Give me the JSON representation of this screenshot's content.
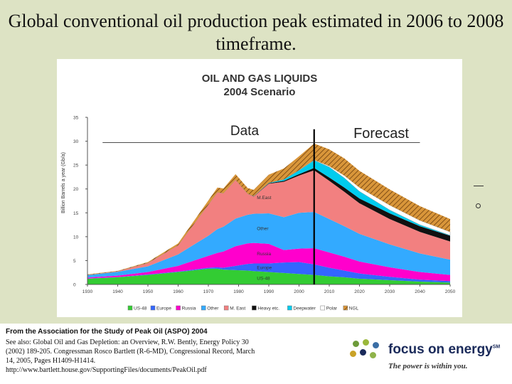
{
  "slide": {
    "title": "Global conventional oil production peak estimated in 2006 to 2008 timeframe."
  },
  "chart_data": {
    "type": "area",
    "title": "OIL AND GAS LIQUIDS",
    "subtitle": "2004 Scenario",
    "xlabel": "",
    "ylabel": "Billion Barrels a year (Gb/a)",
    "xlim": [
      1930,
      2050
    ],
    "ylim": [
      0,
      35
    ],
    "x_ticks": [
      "1930",
      "1940",
      "1950",
      "1960",
      "1970",
      "1980",
      "1990",
      "2000",
      "2010",
      "2020",
      "2030",
      "2040",
      "2050"
    ],
    "y_ticks": [
      "0",
      "5",
      "10",
      "15",
      "20",
      "25",
      "30",
      "35"
    ],
    "grid": false,
    "legend_position": "bottom",
    "split_year": 2005,
    "region_labels": {
      "data": "Data",
      "forecast": "Forecast"
    },
    "x": [
      1930,
      1940,
      1950,
      1960,
      1970,
      1973,
      1975,
      1979,
      1983,
      1985,
      1990,
      1995,
      2000,
      2005,
      2010,
      2015,
      2020,
      2030,
      2040,
      2050
    ],
    "series": [
      {
        "name": "US-48",
        "color": "#33cc33",
        "in_chart_label": "US-48",
        "values": [
          1.2,
          1.5,
          2.0,
          2.6,
          3.3,
          3.3,
          3.1,
          3.0,
          2.9,
          2.8,
          2.6,
          2.4,
          2.2,
          2.0,
          1.7,
          1.5,
          1.2,
          0.9,
          0.6,
          0.4
        ]
      },
      {
        "name": "Europe",
        "color": "#3366ff",
        "in_chart_label": "Europe",
        "values": [
          0.05,
          0.05,
          0.1,
          0.1,
          0.2,
          0.3,
          0.4,
          0.9,
          1.4,
          1.6,
          1.8,
          2.2,
          2.5,
          2.2,
          1.8,
          1.4,
          1.1,
          0.7,
          0.4,
          0.3
        ]
      },
      {
        "name": "Russia",
        "color": "#ff00cc",
        "in_chart_label": "Russia",
        "values": [
          0.2,
          0.3,
          0.5,
          1.2,
          2.5,
          3.0,
          3.4,
          4.1,
          4.3,
          4.3,
          4.1,
          2.6,
          2.8,
          3.4,
          3.2,
          2.9,
          2.5,
          2.0,
          1.6,
          1.3
        ]
      },
      {
        "name": "Other",
        "color": "#33aaff",
        "in_chart_label": "Other",
        "values": [
          0.5,
          0.8,
          1.2,
          2.4,
          4.2,
          5.0,
          5.2,
          5.8,
          6.0,
          6.1,
          6.4,
          6.9,
          7.5,
          7.6,
          7.0,
          6.4,
          5.8,
          4.8,
          3.9,
          3.2
        ]
      },
      {
        "name": "M. East",
        "color": "#f28080",
        "in_chart_label": "M.East",
        "values": [
          0.05,
          0.1,
          0.7,
          1.9,
          6.5,
          7.7,
          7.0,
          8.1,
          4.4,
          3.6,
          6.2,
          7.4,
          7.8,
          8.7,
          8.0,
          7.2,
          6.4,
          5.3,
          4.5,
          3.8
        ]
      },
      {
        "name": "Heavy etc.",
        "color": "#111111",
        "values": [
          0,
          0,
          0,
          0,
          0,
          0,
          0,
          0,
          0,
          0.05,
          0.1,
          0.2,
          0.3,
          0.5,
          0.7,
          0.9,
          1.0,
          1.2,
          1.2,
          1.2
        ]
      },
      {
        "name": "Deepwater",
        "color": "#00ccee",
        "values": [
          0,
          0,
          0,
          0,
          0,
          0,
          0,
          0,
          0,
          0.05,
          0.1,
          0.3,
          0.8,
          1.6,
          2.2,
          2.0,
          1.5,
          0.7,
          0.3,
          0.1
        ]
      },
      {
        "name": "Polar",
        "color": "#ffffff",
        "values": [
          0,
          0,
          0,
          0,
          0,
          0,
          0,
          0,
          0,
          0,
          0,
          0,
          0.05,
          0.1,
          0.2,
          0.5,
          0.8,
          1.0,
          0.9,
          0.7
        ]
      },
      {
        "name": "NGL",
        "color": "#d9963a",
        "pattern": "hatch",
        "values": [
          0.1,
          0.1,
          0.2,
          0.4,
          0.9,
          1.0,
          1.0,
          1.2,
          1.2,
          1.3,
          1.7,
          2.3,
          2.9,
          3.4,
          3.5,
          3.6,
          3.5,
          3.3,
          3.0,
          2.7
        ]
      }
    ]
  },
  "footer": {
    "source_heading": "From the Association for the Study of Peak Oil (ASPO) 2004",
    "source_lines": [
      "See also:  Global Oil and Gas Depletion: an Overview, R.W. Bently, Energy Policy 30",
      "(2002) 189-205. Congressman Rosco Bartlett (R-6-MD), Congressional Record, March",
      "14, 2005, Pages H1409-H1414.",
      "http://www.bartlett.house.gov/SupportingFiles/documents/PeakOil.pdf"
    ]
  },
  "logo": {
    "name": "focus on energy",
    "trademark": "SM",
    "tagline": "The power is within you.",
    "dot_colors": [
      "#6d9b3a",
      "#9ab83c",
      "#3a6ea5",
      "#c9a227",
      "#1a2a5a",
      "#8fb34a"
    ]
  }
}
